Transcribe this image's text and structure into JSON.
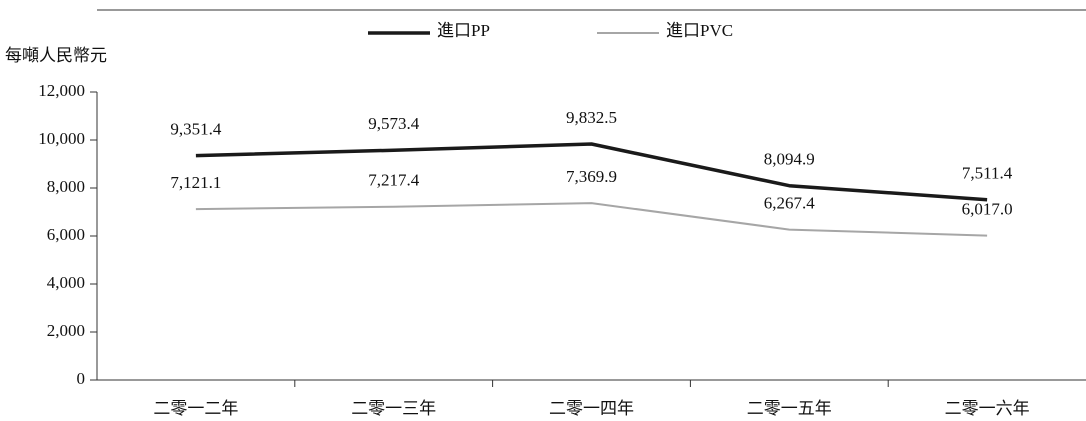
{
  "chart_data": {
    "type": "line",
    "y_label": "每噸人民幣元",
    "categories": [
      "二零一二年",
      "二零一三年",
      "二零一四年",
      "二零一五年",
      "二零一六年"
    ],
    "series": [
      {
        "name": "進口PP",
        "color": "#1a1a1a",
        "width": 3.5,
        "values": [
          9351.4,
          9573.4,
          9832.5,
          8094.9,
          7511.4
        ],
        "value_labels": [
          "9,351.4",
          "9,573.4",
          "9,832.5",
          "8,094.9",
          "7,511.4"
        ]
      },
      {
        "name": "進口PVC",
        "color": "#a6a6a6",
        "width": 2,
        "values": [
          7121.1,
          7217.4,
          7369.9,
          6267.4,
          6017.0
        ],
        "value_labels": [
          "7,121.1",
          "7,217.4",
          "7,369.9",
          "6,267.4",
          "6,017.0"
        ]
      }
    ],
    "ylim": [
      0,
      12000
    ],
    "yticks": [
      0,
      {
        "value": 2000,
        "label": "2,000"
      },
      {
        "value": 4000,
        "label": "4,000"
      },
      {
        "value": 6000,
        "label": "6,000"
      },
      {
        "value": 8000,
        "label": "8,000"
      },
      {
        "value": 10000,
        "label": "10,000"
      },
      {
        "value": 12000,
        "label": "12,000"
      }
    ],
    "legend": "top"
  }
}
